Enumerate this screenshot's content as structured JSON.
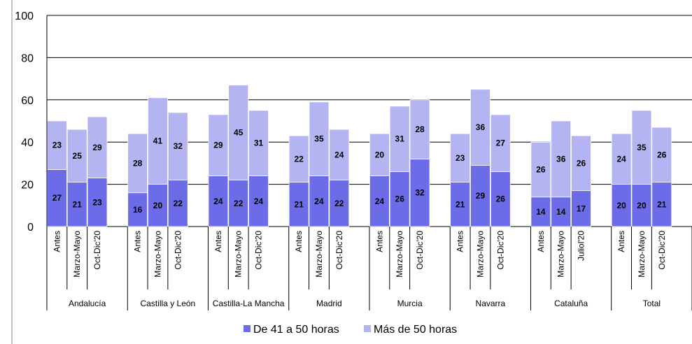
{
  "chart_data": {
    "type": "bar",
    "stacked": true,
    "ylim": [
      0,
      100
    ],
    "yticks": [
      0,
      20,
      40,
      60,
      80,
      100
    ],
    "grid": true,
    "legend_position": "bottom",
    "colors": {
      "series_0": "#6c6ce8",
      "series_1": "#b4b4f3"
    },
    "groups": [
      {
        "name": "Andalucía",
        "periods": [
          "Antes",
          "Marzo-Mayo",
          "Oct-Dic'20"
        ],
        "s0": [
          27,
          21,
          23
        ],
        "s1": [
          23,
          25,
          29
        ]
      },
      {
        "name": "Castilla y León",
        "periods": [
          "Antes",
          "Marzo-Mayo",
          "Oct-Dic'20"
        ],
        "s0": [
          16,
          20,
          22
        ],
        "s1": [
          28,
          41,
          32
        ]
      },
      {
        "name": "Castilla-La Mancha",
        "periods": [
          "Antes",
          "Marzo-Mayo",
          "Oct-Dic'20"
        ],
        "s0": [
          24,
          22,
          24
        ],
        "s1": [
          29,
          45,
          31
        ]
      },
      {
        "name": "Madrid",
        "periods": [
          "Antes",
          "Marzo-Mayo",
          "Oct-Dic'20"
        ],
        "s0": [
          21,
          24,
          22
        ],
        "s1": [
          22,
          35,
          24
        ]
      },
      {
        "name": "Murcia",
        "periods": [
          "Antes",
          "Marzo-Mayo",
          "Oct-Dic'20"
        ],
        "s0": [
          24,
          26,
          32
        ],
        "s1": [
          20,
          31,
          28
        ]
      },
      {
        "name": "Navarra",
        "periods": [
          "Antes",
          "Marzo-Mayo",
          "Oct-Dic'20"
        ],
        "s0": [
          21,
          29,
          26
        ],
        "s1": [
          23,
          36,
          27
        ]
      },
      {
        "name": "Cataluña",
        "periods": [
          "Antes",
          "Marzo-Mayo",
          "Juliol'20"
        ],
        "s0": [
          14,
          14,
          17
        ],
        "s1": [
          26,
          36,
          26
        ]
      },
      {
        "name": "Total",
        "periods": [
          "Antes",
          "Marzo-Mayo",
          "Oct-Dic'20"
        ],
        "s0": [
          20,
          20,
          21
        ],
        "s1": [
          24,
          35,
          26
        ]
      }
    ],
    "series": [
      {
        "name": "De 41 a 50 horas"
      },
      {
        "name": "Más de 50 horas"
      }
    ]
  }
}
